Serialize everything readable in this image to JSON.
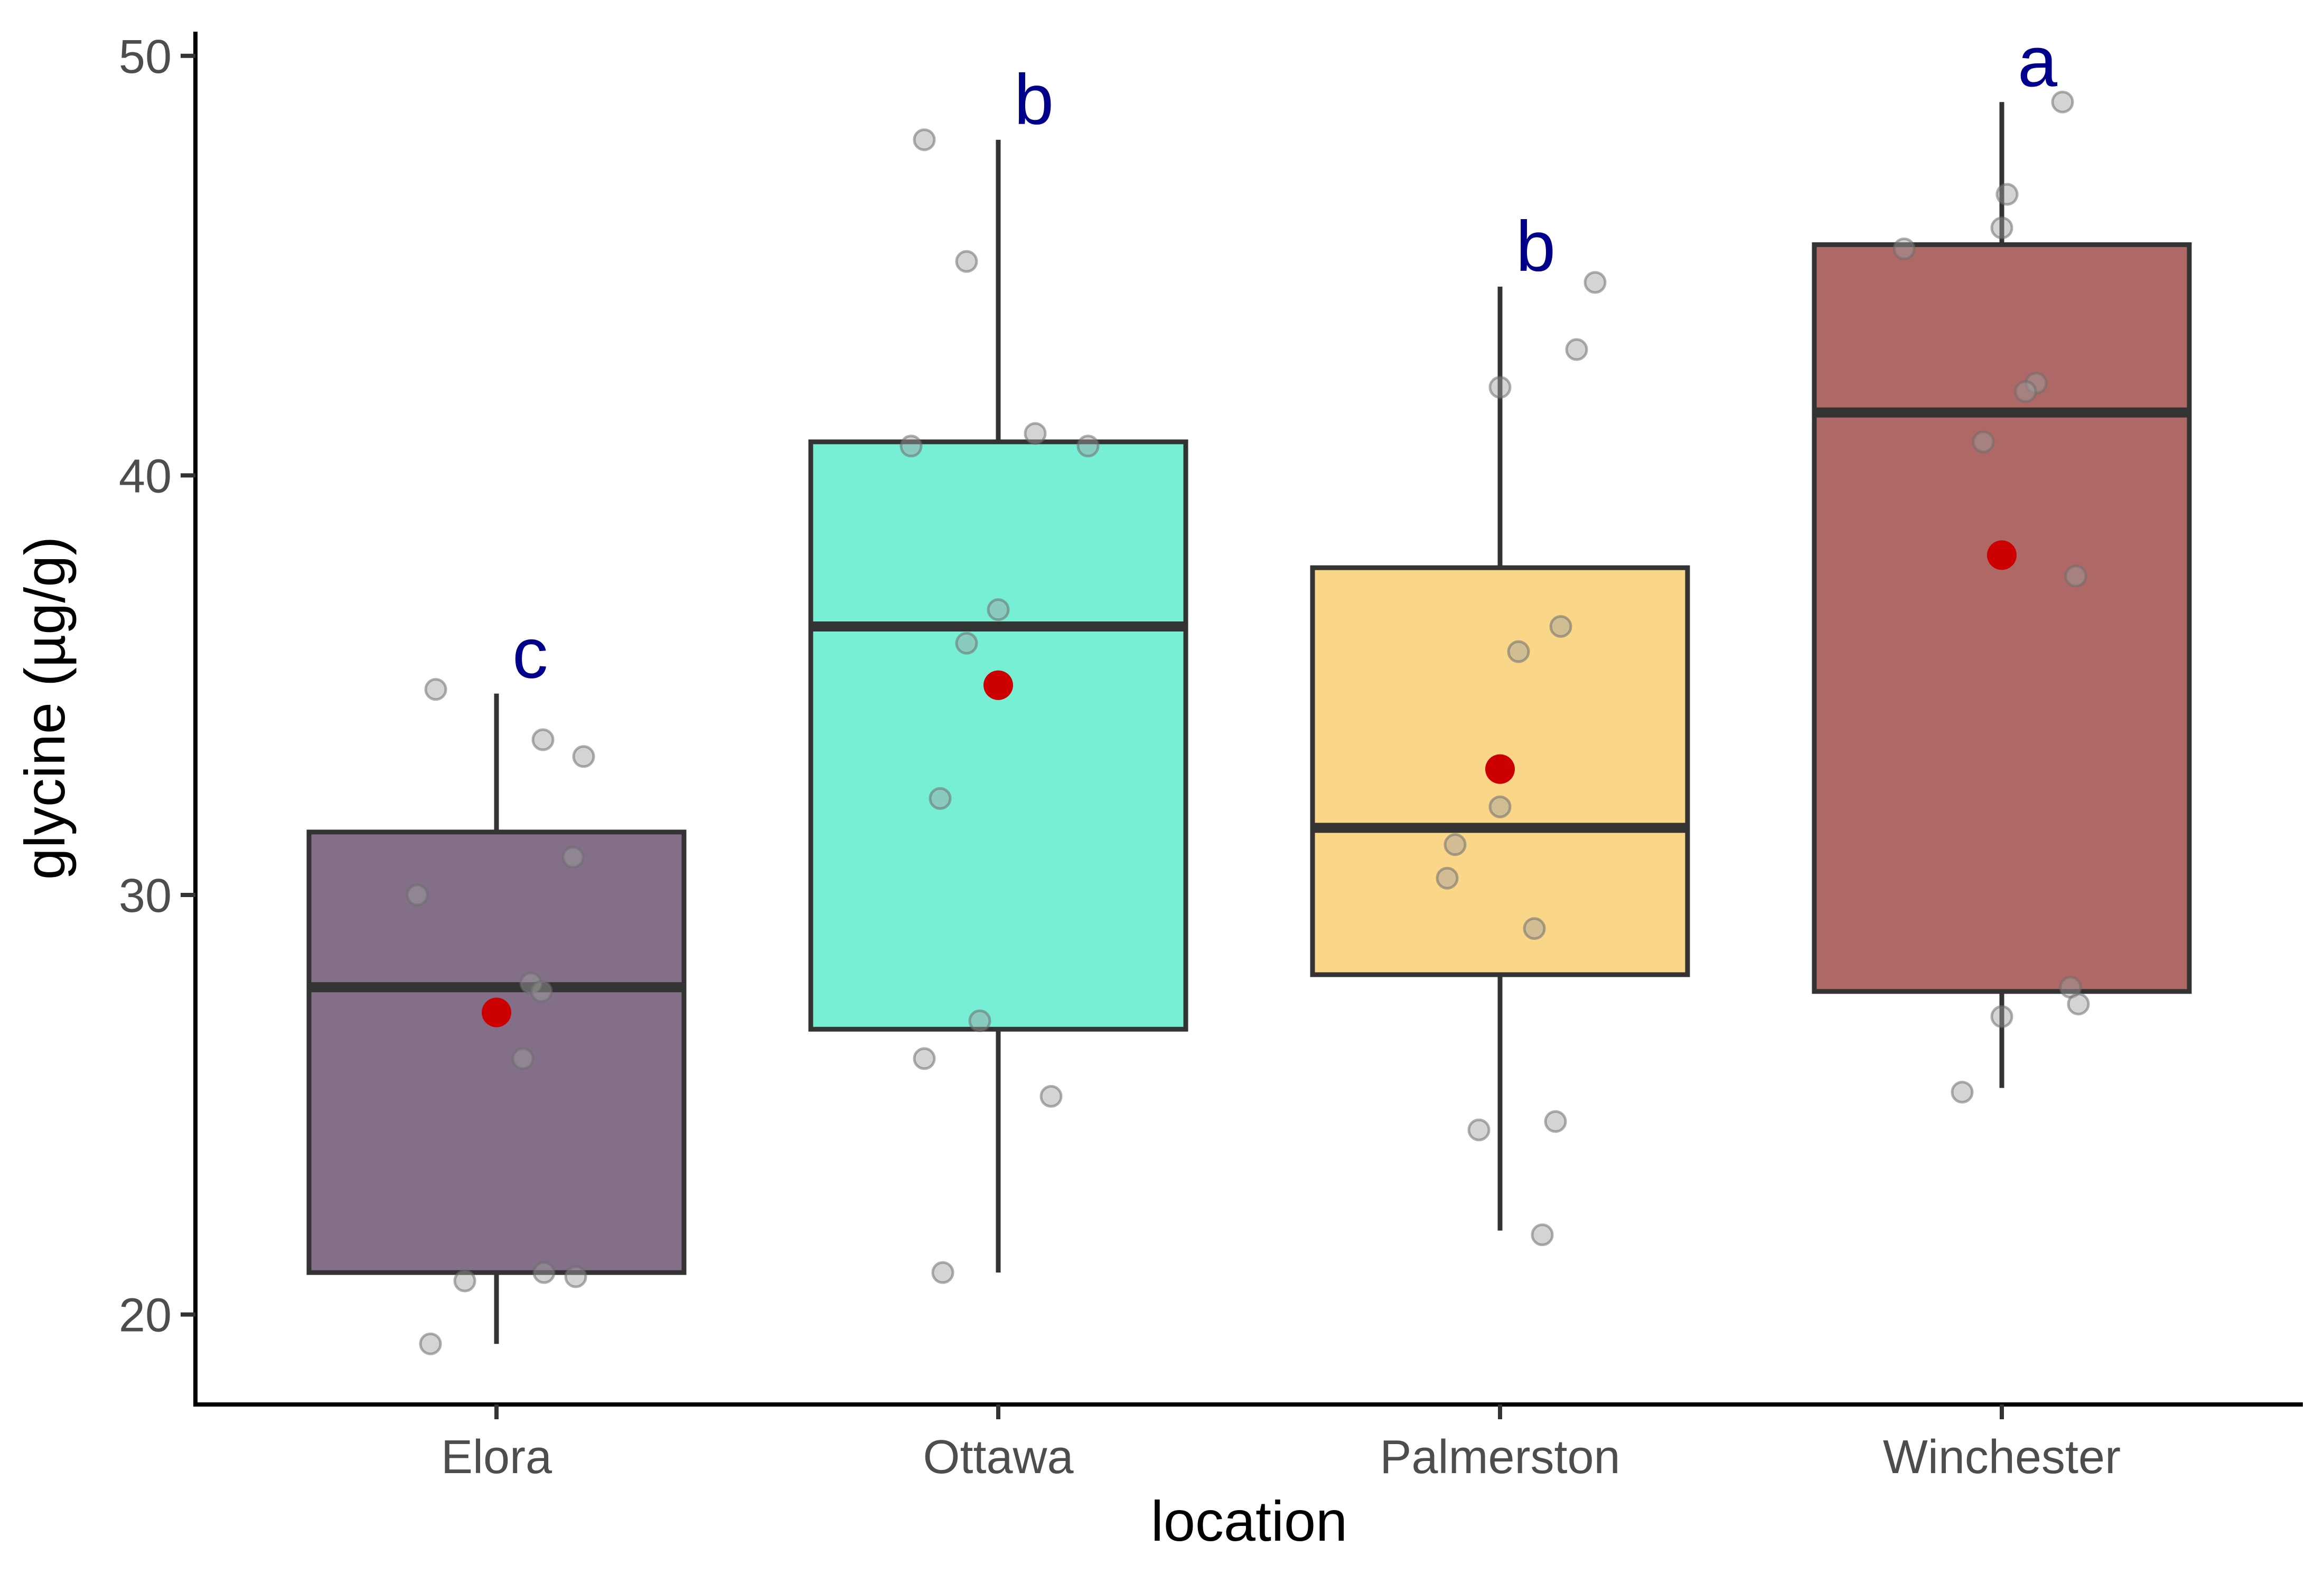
{
  "chart_data": {
    "type": "box",
    "xlabel": "location",
    "ylabel": "glycine (µg/g)",
    "ylim": [
      17.8,
      50.6
    ],
    "yticks": [
      20,
      30,
      40,
      50
    ],
    "categories": [
      "Elora",
      "Ottawa",
      "Palmerston",
      "Winchester"
    ],
    "legend": "none",
    "grid": false,
    "groups": [
      {
        "name": "Elora",
        "fill": "#836F87",
        "whisker_low": 19.3,
        "q1": 21.0,
        "median": 27.8,
        "q3": 31.5,
        "whisker_high": 34.8,
        "mean": 27.2,
        "letter": "c",
        "points": [
          34.9,
          33.7,
          33.3,
          30.9,
          30.0,
          27.9,
          27.7,
          26.1,
          21.0,
          20.9,
          20.8,
          19.3
        ]
      },
      {
        "name": "Ottawa",
        "fill": "#77EFD4",
        "whisker_low": 21.0,
        "q1": 26.8,
        "median": 36.4,
        "q3": 40.8,
        "whisker_high": 48.0,
        "mean": 35.0,
        "letter": "b",
        "points": [
          48.0,
          45.1,
          41.0,
          40.7,
          40.7,
          36.8,
          36.0,
          32.3,
          27.0,
          26.1,
          25.2,
          21.0
        ]
      },
      {
        "name": "Palmerston",
        "fill": "#FAD689",
        "whisker_low": 22.0,
        "q1": 28.1,
        "median": 31.6,
        "q3": 37.8,
        "whisker_high": 44.5,
        "mean": 33.0,
        "letter": "b",
        "points": [
          44.6,
          43.0,
          42.1,
          36.4,
          35.8,
          32.1,
          31.2,
          30.4,
          29.2,
          24.6,
          24.4,
          21.9
        ]
      },
      {
        "name": "Winchester",
        "fill": "#AE6866",
        "whisker_low": 25.4,
        "q1": 27.7,
        "median": 41.5,
        "q3": 45.5,
        "whisker_high": 48.9,
        "mean": 38.1,
        "letter": "a",
        "points": [
          48.9,
          46.7,
          45.9,
          45.4,
          42.2,
          42.0,
          40.8,
          37.6,
          27.8,
          27.4,
          27.1,
          25.3
        ]
      }
    ],
    "point_color": "#bfbfbf",
    "mean_color": "#cc0000",
    "box_line_color": "#333333",
    "letter_color": "#00008b"
  }
}
